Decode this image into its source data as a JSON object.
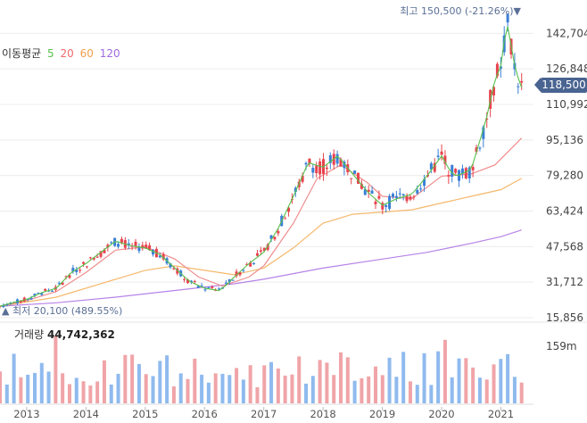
{
  "legend": {
    "label": "이동평균",
    "ma5": "5",
    "ma20": "20",
    "ma60": "60",
    "ma120": "120"
  },
  "colors": {
    "up": "#e8434e",
    "down": "#3a7fd6",
    "ma5": "#56c14a",
    "ma20": "#ef8d8d",
    "ma60": "#f5b86c",
    "ma120": "#b783e8",
    "vol_up": "#f0a4a8",
    "vol_down": "#8fbaee",
    "grid": "#ececec",
    "badge": "#4a6491"
  },
  "high_note": {
    "prefix": "최고",
    "value": "150,500 (-21.26%)",
    "marker": "▼"
  },
  "low_note": {
    "marker": "▲",
    "prefix": "최저",
    "value": "20,100 (489.55%)"
  },
  "current_price": "118,500",
  "volume": {
    "label": "거래량",
    "value": "44,742,362",
    "axis_label": "159m"
  },
  "chart_data": {
    "type": "candlestick",
    "title": "",
    "y_ticks": [
      "142,704",
      "126,848",
      "110,992",
      "95,136",
      "79,280",
      "63,424",
      "47,568",
      "31,712",
      "15,856"
    ],
    "y_tick_values": [
      142704,
      126848,
      110992,
      95136,
      79280,
      63424,
      47568,
      31712,
      15856
    ],
    "ylim": [
      15856,
      152000
    ],
    "x_ticks": [
      "2013",
      "2014",
      "2015",
      "2016",
      "2017",
      "2018",
      "2019",
      "2020",
      "2021"
    ],
    "x_tick_values": [
      2013,
      2014,
      2015,
      2016,
      2017,
      2018,
      2019,
      2020,
      2021
    ],
    "xlim": [
      2012.55,
      2021.55
    ],
    "close_points": [
      [
        2012.55,
        21000
      ],
      [
        2012.75,
        22500
      ],
      [
        2013.0,
        24000
      ],
      [
        2013.25,
        27000
      ],
      [
        2013.5,
        29000
      ],
      [
        2013.75,
        36000
      ],
      [
        2014.0,
        40000
      ],
      [
        2014.25,
        45000
      ],
      [
        2014.5,
        50000
      ],
      [
        2014.75,
        48000
      ],
      [
        2015.0,
        47000
      ],
      [
        2015.25,
        44000
      ],
      [
        2015.5,
        38000
      ],
      [
        2015.75,
        32000
      ],
      [
        2016.0,
        29000
      ],
      [
        2016.25,
        28000
      ],
      [
        2016.35,
        30000
      ],
      [
        2016.5,
        34000
      ],
      [
        2016.75,
        40000
      ],
      [
        2017.0,
        45000
      ],
      [
        2017.25,
        56000
      ],
      [
        2017.5,
        70000
      ],
      [
        2017.75,
        85000
      ],
      [
        2018.0,
        83000
      ],
      [
        2018.25,
        88000
      ],
      [
        2018.5,
        80000
      ],
      [
        2018.75,
        72000
      ],
      [
        2019.0,
        66000
      ],
      [
        2019.25,
        69000
      ],
      [
        2019.5,
        71000
      ],
      [
        2019.75,
        79000
      ],
      [
        2020.0,
        88000
      ],
      [
        2020.15,
        81000
      ],
      [
        2020.25,
        79000
      ],
      [
        2020.5,
        82000
      ],
      [
        2020.75,
        104000
      ],
      [
        2020.9,
        122000
      ],
      [
        2021.0,
        128000
      ],
      [
        2021.1,
        148000
      ],
      [
        2021.25,
        126000
      ],
      [
        2021.35,
        118500
      ]
    ],
    "ma20_points": [
      [
        2012.55,
        21000
      ],
      [
        2013.0,
        23500
      ],
      [
        2013.5,
        27500
      ],
      [
        2014.0,
        36000
      ],
      [
        2014.5,
        46000
      ],
      [
        2015.0,
        47500
      ],
      [
        2015.5,
        42000
      ],
      [
        2015.9,
        34000
      ],
      [
        2016.3,
        30000
      ],
      [
        2016.75,
        34000
      ],
      [
        2017.0,
        39000
      ],
      [
        2017.5,
        58000
      ],
      [
        2017.9,
        78000
      ],
      [
        2018.3,
        84000
      ],
      [
        2018.75,
        76000
      ],
      [
        2019.0,
        70000
      ],
      [
        2019.5,
        69000
      ],
      [
        2020.0,
        79000
      ],
      [
        2020.5,
        80000
      ],
      [
        2020.9,
        84000
      ],
      [
        2021.35,
        96000
      ]
    ],
    "ma60_points": [
      [
        2012.55,
        21000
      ],
      [
        2013.5,
        25000
      ],
      [
        2014.5,
        33000
      ],
      [
        2015.0,
        37000
      ],
      [
        2015.5,
        39000
      ],
      [
        2016.0,
        37000
      ],
      [
        2016.5,
        35000
      ],
      [
        2017.0,
        38000
      ],
      [
        2017.5,
        47000
      ],
      [
        2018.0,
        58000
      ],
      [
        2018.5,
        62000
      ],
      [
        2019.0,
        63000
      ],
      [
        2019.5,
        64000
      ],
      [
        2020.0,
        67000
      ],
      [
        2020.5,
        70000
      ],
      [
        2021.0,
        73000
      ],
      [
        2021.35,
        78000
      ]
    ],
    "ma120_points": [
      [
        2012.55,
        21000
      ],
      [
        2013.5,
        22500
      ],
      [
        2014.5,
        25000
      ],
      [
        2015.5,
        28000
      ],
      [
        2016.5,
        31000
      ],
      [
        2017.0,
        33000
      ],
      [
        2018.0,
        38000
      ],
      [
        2019.0,
        42000
      ],
      [
        2019.75,
        45000
      ],
      [
        2020.5,
        49000
      ],
      [
        2021.0,
        52000
      ],
      [
        2021.35,
        55000
      ]
    ],
    "high": {
      "value": 150500,
      "x": 2021.1
    },
    "low": {
      "value": 20100,
      "x": 2012.55
    },
    "volume_scale_max": 159,
    "volume_unit": "m"
  }
}
